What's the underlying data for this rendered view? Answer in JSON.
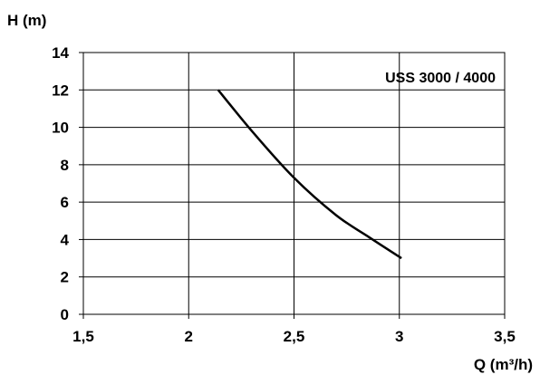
{
  "chart_data": {
    "type": "line",
    "title": "",
    "xlabel": "Q (m³/h)",
    "ylabel": "H (m)",
    "xlim": [
      1.5,
      3.5
    ],
    "ylim": [
      0,
      14
    ],
    "x_ticks": [
      1.5,
      2,
      2.5,
      3,
      3.5
    ],
    "x_tick_labels": [
      "1,5",
      "2",
      "2,5",
      "3",
      "3,5"
    ],
    "y_ticks": [
      0,
      2,
      4,
      6,
      8,
      10,
      12,
      14
    ],
    "y_tick_labels": [
      "0",
      "2",
      "4",
      "6",
      "8",
      "10",
      "12",
      "14"
    ],
    "grid": true,
    "annotation": "USS 3000 / 4000",
    "series": [
      {
        "x": [
          2.14,
          2.3,
          2.5,
          2.7,
          2.86,
          3.01
        ],
        "y": [
          12.0,
          9.8,
          7.3,
          5.3,
          4.1,
          3.0
        ]
      }
    ],
    "colors": {
      "line": "#000000",
      "grid": "#000000",
      "background": "#ffffff"
    }
  }
}
